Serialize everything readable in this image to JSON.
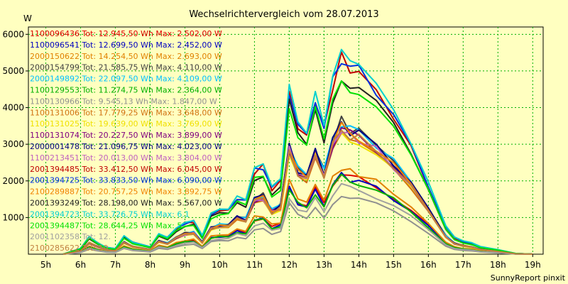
{
  "chart_data": {
    "type": "line",
    "title": "Wechselrichtervergleich vom 28.07.2013",
    "ylabel": "W",
    "xlabel": "",
    "footer": "SunnyReport pinxit",
    "ylim": [
      0,
      6200
    ],
    "xlim": [
      4.5,
      19.3
    ],
    "y_ticks": [
      1000,
      2000,
      3000,
      4000,
      5000,
      6000
    ],
    "x_ticks": [
      {
        "value": 5,
        "label": "5h"
      },
      {
        "value": 6,
        "label": "6h"
      },
      {
        "value": 7,
        "label": "7h"
      },
      {
        "value": 8,
        "label": "8h"
      },
      {
        "value": 9,
        "label": "9h"
      },
      {
        "value": 10,
        "label": "10h"
      },
      {
        "value": 11,
        "label": "11h"
      },
      {
        "value": 12,
        "label": "12h"
      },
      {
        "value": 13,
        "label": "13h"
      },
      {
        "value": 14,
        "label": "14h"
      },
      {
        "value": 15,
        "label": "15h"
      },
      {
        "value": 16,
        "label": "16h"
      },
      {
        "value": 17,
        "label": "17h"
      },
      {
        "value": 18,
        "label": "18h"
      },
      {
        "value": 19,
        "label": "19h"
      }
    ],
    "grid": true,
    "legend_position": "top-left",
    "x": [
      5.5,
      6.0,
      6.25,
      6.5,
      6.75,
      7.0,
      7.25,
      7.5,
      8.0,
      8.25,
      8.5,
      8.75,
      9.0,
      9.25,
      9.5,
      9.75,
      10.0,
      10.25,
      10.5,
      10.75,
      11.0,
      11.25,
      11.5,
      11.75,
      12.0,
      12.25,
      12.5,
      12.75,
      13.0,
      13.25,
      13.5,
      13.75,
      14.0,
      14.5,
      15.0,
      15.5,
      16.0,
      16.5,
      16.75,
      17.0,
      17.25,
      17.5,
      18.0,
      18.5,
      19.0
    ],
    "series": [
      {
        "name": "1100096436 Tot: 12.945,50 Wh Max: 2.502,00 W",
        "color": "#e00000",
        "scale": 0.41
      },
      {
        "name": "1100096541 Tot: 12.699,50 Wh Max: 2.452,00 W",
        "color": "#0000c0",
        "scale": 0.4
      },
      {
        "name": "2000150622 Tot: 14.254,50 Wh Max: 2.693,00 W",
        "color": "#e08000",
        "scale": 0.44
      },
      {
        "name": "2000154799 Tot: 21.585,75 Wh Max: 4.110,00 W",
        "color": "#404040",
        "scale": 0.67
      },
      {
        "name": "2000149892 Tot: 22.097,50 Wh Max: 4.109,00 W",
        "color": "#00c0ff",
        "scale": 0.67
      },
      {
        "name": "1100129553 Tot: 11.274,75 Wh Max: 2.364,00 W",
        "color": "#00b000",
        "scale": 0.39
      },
      {
        "name": "1100130966 Tot: 9.545,13 Wh Max: 1.847,00 W",
        "color": "#909090",
        "scale": 0.3
      },
      {
        "name": "1100131006 Tot: 17.779,25 Wh Max: 3.648,00 W",
        "color": "#d07010",
        "scale": 0.6
      },
      {
        "name": "1100131025 Tot: 19.639,00 Wh Max: 3.769,00 W",
        "color": "#f0e000",
        "scale": 0.62
      },
      {
        "name": "1100131074 Tot: 20.227,50 Wh Max: 3.899,00 W",
        "color": "#800080",
        "scale": 0.64
      },
      {
        "name": "2000001478 Tot: 21.096,75 Wh Max: 4.023,00 W",
        "color": "#000080",
        "scale": 0.66
      },
      {
        "name": "1100213451 Tot: 20.013,00 Wh Max: 3.804,00 W",
        "color": "#c060c0",
        "scale": 0.63
      },
      {
        "name": "2001394485 Tot: 33.412,50 Wh Max: 6.045,00 W",
        "color": "#c00000",
        "scale": 0.99
      },
      {
        "name": "2001394725 Tot: 33.833,50 Wh Max: 6.090,00 W",
        "color": "#0030e0",
        "scale": 1.0
      },
      {
        "name": "2100289887 Tot: 20.757,25 Wh Max: 3.892,75 W",
        "color": "#f08000",
        "scale": 0.64
      },
      {
        "name": "2001393249 Tot: 28.198,00 Wh Max: 5.567,00 W",
        "color": "#202020",
        "scale": 0.91
      },
      {
        "name": "2001394723 Tot: 33.726,75 Wh Max: 6.1",
        "color": "#00d0d0",
        "scale": 1.0
      },
      {
        "name": "2001394487 Tot: 28.644,25 Wh Max: 5.",
        "color": "#00e000",
        "scale": 0.9
      },
      {
        "name": "2001102358 Tot: 12.",
        "color": "#a0a0a0",
        "scale": 0.35
      },
      {
        "name": "2100285622 Tot: 19.",
        "color": "#c08040",
        "scale": 0.63
      }
    ],
    "base_profile": [
      0,
      150,
      480,
      300,
      180,
      150,
      500,
      320,
      200,
      550,
      450,
      700,
      850,
      900,
      500,
      1100,
      1200,
      1200,
      1550,
      1450,
      2300,
      2400,
      1800,
      2000,
      4500,
      3500,
      3200,
      4300,
      3400,
      4700,
      5400,
      5100,
      5000,
      4500,
      3800,
      2900,
      1900,
      750,
      450,
      350,
      300,
      200,
      120,
      20,
      0
    ]
  }
}
